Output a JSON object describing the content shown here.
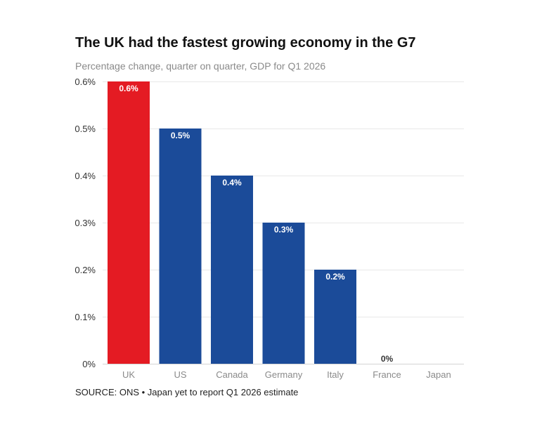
{
  "header": {
    "title": "The UK had the fastest growing economy in the G7",
    "subtitle": "Percentage change, quarter on quarter, GDP for Q1 2026"
  },
  "footer": {
    "source": "SOURCE: ONS • Japan yet to report Q1 2026 estimate"
  },
  "colors": {
    "highlight": "#e41b23",
    "bar": "#1b4b99",
    "grid": "#e8e8e8"
  },
  "chart_data": {
    "type": "bar",
    "title": "The UK had the fastest growing economy in the G7",
    "subtitle": "Percentage change, quarter on quarter, GDP for Q1 2026",
    "xlabel": "",
    "ylabel": "",
    "categories": [
      "UK",
      "US",
      "Canada",
      "Germany",
      "Italy",
      "France",
      "Japan"
    ],
    "values": [
      0.6,
      0.5,
      0.4,
      0.3,
      0.2,
      0,
      null
    ],
    "data_labels": [
      "0.6%",
      "0.5%",
      "0.4%",
      "0.3%",
      "0.2%",
      "0%",
      ""
    ],
    "highlight_category": "UK",
    "ylim": [
      0,
      0.6
    ],
    "yticks": [
      0,
      0.1,
      0.2,
      0.3,
      0.4,
      0.5,
      0.6
    ],
    "ytick_labels": [
      "0%",
      "0.1%",
      "0.2%",
      "0.3%",
      "0.4%",
      "0.5%",
      "0.6%"
    ],
    "grid": true,
    "legend": "none"
  }
}
